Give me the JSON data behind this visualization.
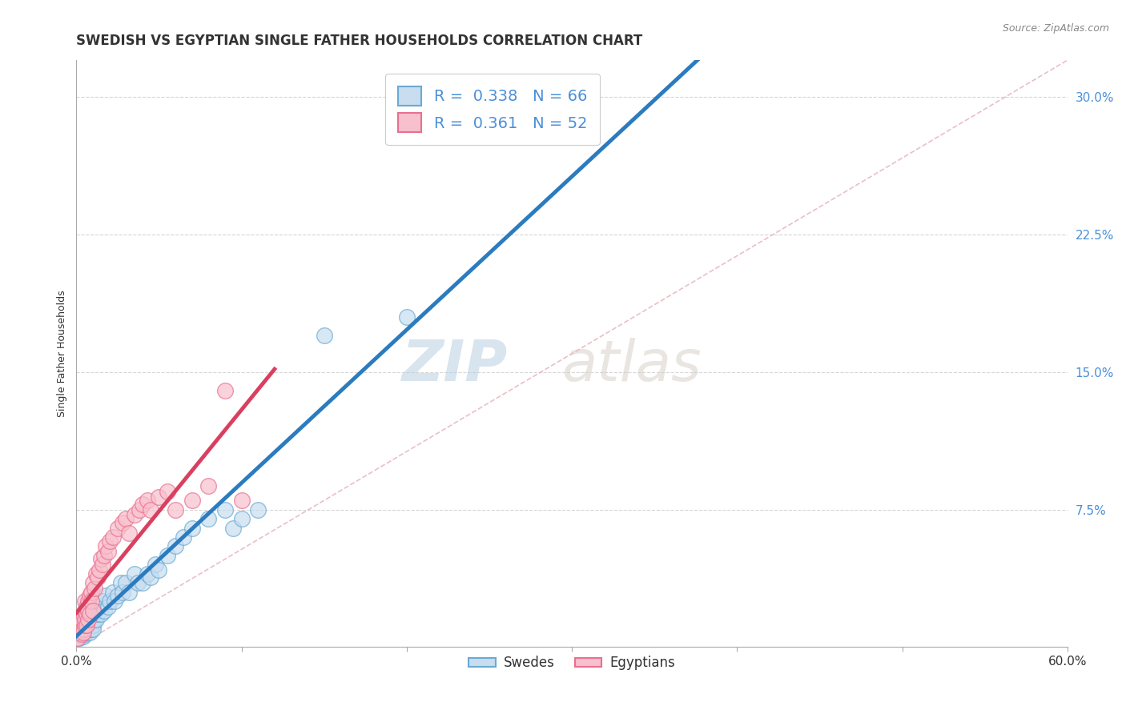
{
  "title": "SWEDISH VS EGYPTIAN SINGLE FATHER HOUSEHOLDS CORRELATION CHART",
  "source_text": "Source: ZipAtlas.com",
  "xlabel": "",
  "ylabel": "Single Father Households",
  "x_min": 0.0,
  "x_max": 0.6,
  "y_min": 0.0,
  "y_max": 0.32,
  "x_ticks": [
    0.0,
    0.1,
    0.2,
    0.3,
    0.4,
    0.5,
    0.6
  ],
  "x_tick_labels": [
    "0.0%",
    "",
    "",
    "",
    "",
    "",
    "60.0%"
  ],
  "y_ticks": [
    0.075,
    0.15,
    0.225,
    0.3
  ],
  "y_tick_labels": [
    "7.5%",
    "15.0%",
    "22.5%",
    "30.0%"
  ],
  "swedes_color": "#c8ddf0",
  "egyptians_color": "#f8c0cc",
  "swedes_edge_color": "#6aaad4",
  "egyptians_edge_color": "#e87090",
  "swedes_line_color": "#2b7bbf",
  "egyptians_line_color": "#d94060",
  "legend_r_swedes": "0.338",
  "legend_n_swedes": "66",
  "legend_r_egyptians": "0.361",
  "legend_n_egyptians": "52",
  "legend_label_swedes": "Swedes",
  "legend_label_egyptians": "Egyptians",
  "watermark_zip": "ZIP",
  "watermark_atlas": "atlas",
  "background_color": "#ffffff",
  "grid_color": "#cccccc",
  "title_fontsize": 12,
  "axis_fontsize": 9,
  "tick_fontsize": 10,
  "ref_line_color": "#e8b8c0",
  "swedes_x": [
    0.002,
    0.003,
    0.003,
    0.004,
    0.004,
    0.004,
    0.005,
    0.005,
    0.005,
    0.005,
    0.006,
    0.006,
    0.006,
    0.007,
    0.007,
    0.007,
    0.008,
    0.008,
    0.008,
    0.008,
    0.009,
    0.009,
    0.009,
    0.01,
    0.01,
    0.01,
    0.01,
    0.011,
    0.011,
    0.012,
    0.012,
    0.013,
    0.013,
    0.014,
    0.015,
    0.015,
    0.016,
    0.017,
    0.018,
    0.019,
    0.02,
    0.022,
    0.023,
    0.025,
    0.027,
    0.028,
    0.03,
    0.032,
    0.035,
    0.037,
    0.04,
    0.043,
    0.045,
    0.048,
    0.05,
    0.055,
    0.06,
    0.065,
    0.07,
    0.08,
    0.09,
    0.095,
    0.1,
    0.11,
    0.15,
    0.2
  ],
  "swedes_y": [
    0.005,
    0.008,
    0.01,
    0.006,
    0.012,
    0.008,
    0.01,
    0.007,
    0.015,
    0.009,
    0.008,
    0.012,
    0.01,
    0.015,
    0.01,
    0.012,
    0.01,
    0.015,
    0.008,
    0.018,
    0.012,
    0.018,
    0.01,
    0.015,
    0.012,
    0.02,
    0.01,
    0.018,
    0.015,
    0.02,
    0.015,
    0.018,
    0.022,
    0.02,
    0.025,
    0.018,
    0.025,
    0.02,
    0.028,
    0.022,
    0.025,
    0.03,
    0.025,
    0.028,
    0.035,
    0.03,
    0.035,
    0.03,
    0.04,
    0.035,
    0.035,
    0.04,
    0.038,
    0.045,
    0.042,
    0.05,
    0.055,
    0.06,
    0.065,
    0.07,
    0.075,
    0.065,
    0.07,
    0.075,
    0.17,
    0.18
  ],
  "egyptians_x": [
    0.001,
    0.002,
    0.002,
    0.003,
    0.003,
    0.003,
    0.004,
    0.004,
    0.004,
    0.005,
    0.005,
    0.005,
    0.005,
    0.006,
    0.006,
    0.006,
    0.007,
    0.007,
    0.007,
    0.008,
    0.008,
    0.009,
    0.009,
    0.01,
    0.01,
    0.011,
    0.012,
    0.013,
    0.014,
    0.015,
    0.016,
    0.017,
    0.018,
    0.019,
    0.02,
    0.022,
    0.025,
    0.028,
    0.03,
    0.032,
    0.035,
    0.038,
    0.04,
    0.043,
    0.045,
    0.05,
    0.055,
    0.06,
    0.07,
    0.08,
    0.09,
    0.1
  ],
  "egyptians_y": [
    0.005,
    0.008,
    0.01,
    0.007,
    0.012,
    0.015,
    0.01,
    0.018,
    0.008,
    0.012,
    0.02,
    0.015,
    0.025,
    0.018,
    0.012,
    0.022,
    0.025,
    0.015,
    0.02,
    0.028,
    0.018,
    0.03,
    0.025,
    0.035,
    0.02,
    0.032,
    0.04,
    0.038,
    0.042,
    0.048,
    0.045,
    0.05,
    0.055,
    0.052,
    0.058,
    0.06,
    0.065,
    0.068,
    0.07,
    0.062,
    0.072,
    0.075,
    0.078,
    0.08,
    0.075,
    0.082,
    0.085,
    0.075,
    0.08,
    0.088,
    0.14,
    0.08
  ]
}
